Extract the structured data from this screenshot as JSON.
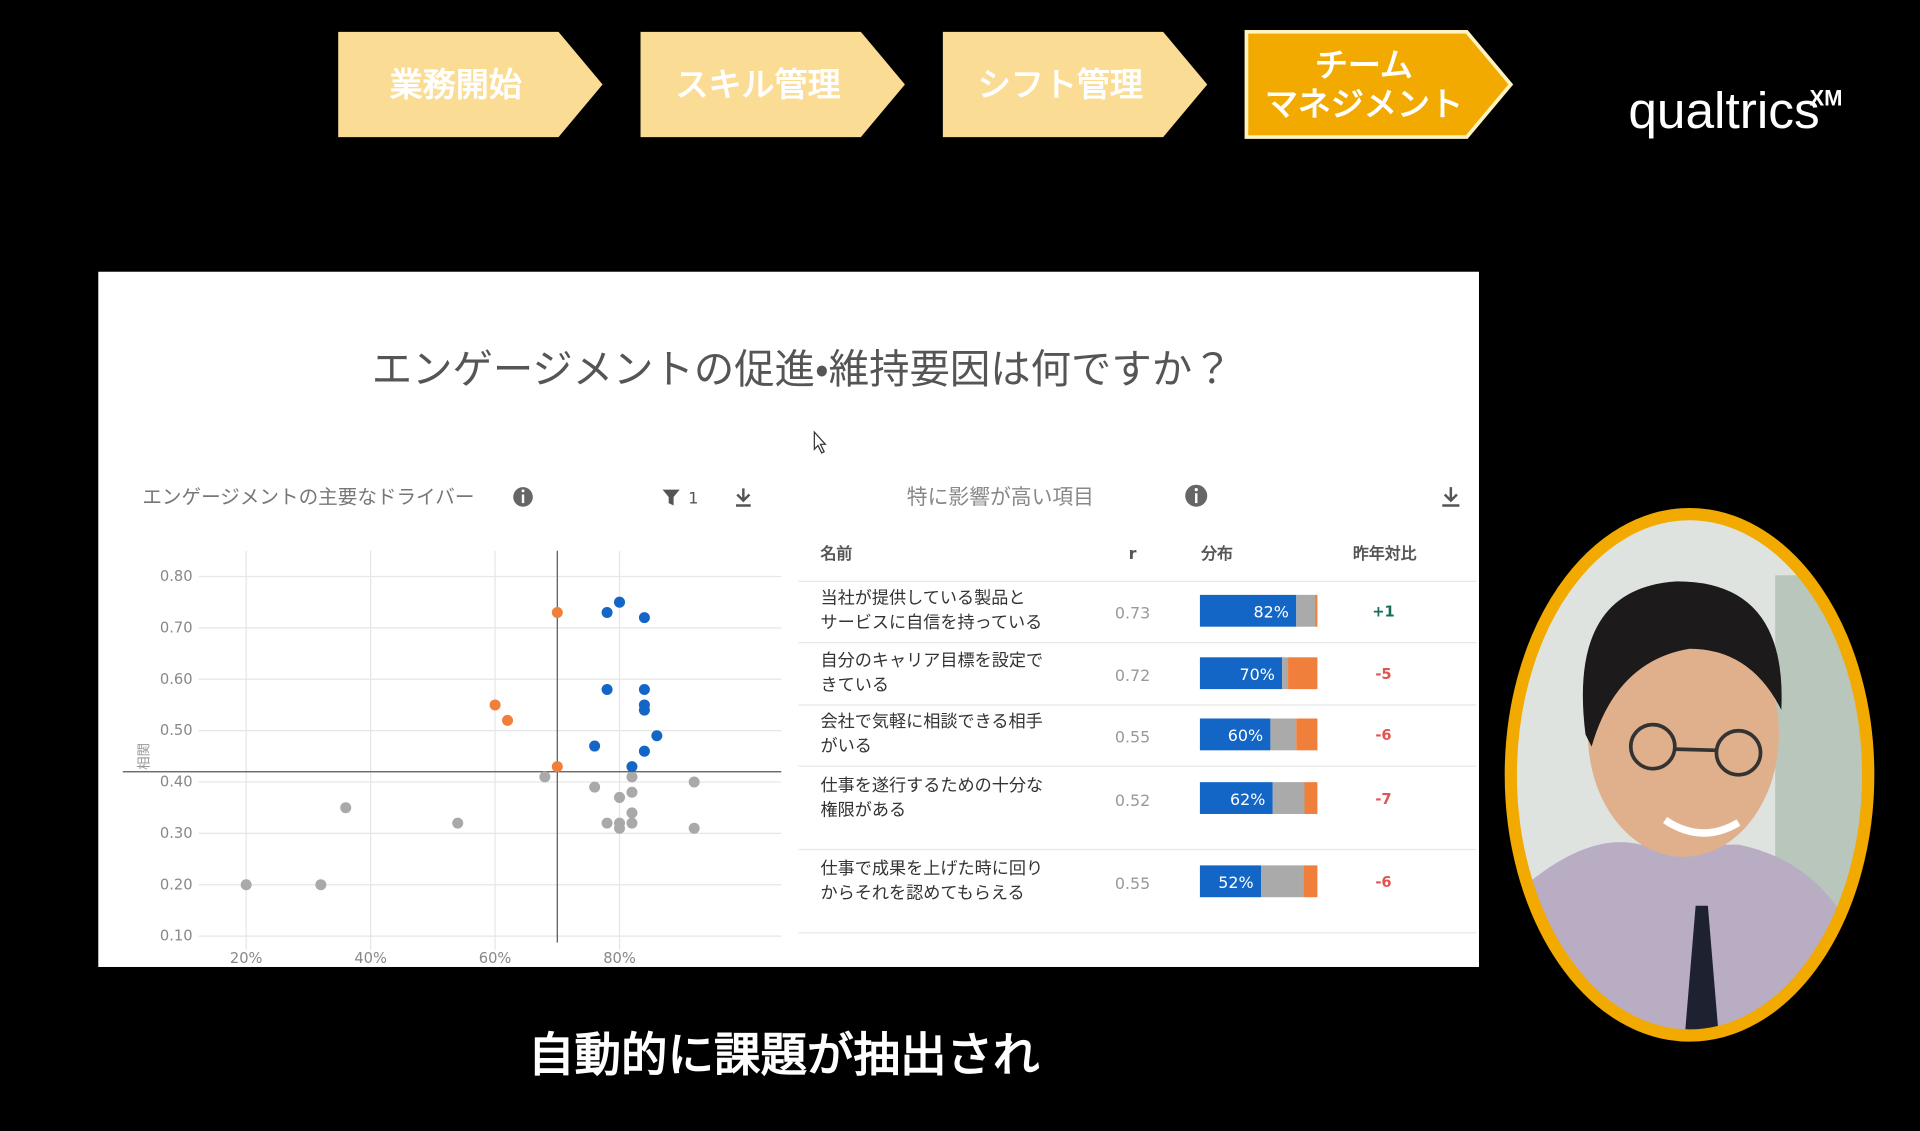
{
  "steps": [
    {
      "label": [
        "業務開始"
      ],
      "color": "#fbdc94"
    },
    {
      "label": [
        "スキル管理"
      ],
      "color": "#fbdc94"
    },
    {
      "label": [
        "シフト管理"
      ],
      "color": "#fbdc94"
    },
    {
      "label": [
        "チーム",
        "マネジメント"
      ],
      "color": "#f2a900"
    }
  ],
  "logo": {
    "text": "qualtrics",
    "mark": "XM"
  },
  "dashboard": {
    "title": "エンゲージメントの促進・維持要因は何ですか？",
    "left_header": "エンゲージメントの主要なドライバー",
    "filter_count": "1",
    "right_header": "特に影響が高い項目"
  },
  "chart_data": {
    "type": "scatter",
    "y_label": "相関",
    "xlim": [
      10,
      106
    ],
    "ylim": [
      0.04,
      0.85
    ],
    "xticks": [
      {
        "value": 20,
        "label": "20%"
      },
      {
        "value": 40,
        "label": "40%"
      },
      {
        "value": 60,
        "label": "60%"
      },
      {
        "value": 80,
        "label": "80%"
      }
    ],
    "yticks": [
      {
        "value": 0.1,
        "label": "0.10"
      },
      {
        "value": 0.2,
        "label": "0.20"
      },
      {
        "value": 0.3,
        "label": "0.30"
      },
      {
        "value": 0.4,
        "label": "0.40"
      },
      {
        "value": 0.5,
        "label": "0.50"
      },
      {
        "value": 0.6,
        "label": "0.60"
      },
      {
        "value": 0.7,
        "label": "0.70"
      },
      {
        "value": 0.8,
        "label": "0.80"
      }
    ],
    "grid": true,
    "reference_x": 70,
    "reference_y": 0.42,
    "series": [
      {
        "color": "#a9a9a9",
        "x": [
          20,
          32,
          36,
          54,
          68,
          76,
          78,
          80,
          80,
          80,
          82,
          82,
          82,
          82,
          92,
          92
        ],
        "values": [
          0.2,
          0.2,
          0.35,
          0.32,
          0.41,
          0.39,
          0.32,
          0.37,
          0.32,
          0.31,
          0.41,
          0.38,
          0.34,
          0.32,
          0.4,
          0.31
        ]
      },
      {
        "color": "#f07f3c",
        "x": [
          70,
          60,
          62,
          70
        ],
        "values": [
          0.73,
          0.55,
          0.52,
          0.43
        ]
      },
      {
        "color": "#1466c6",
        "x": [
          78,
          80,
          84,
          78,
          84,
          84,
          84,
          86,
          76,
          84,
          82
        ],
        "values": [
          0.73,
          0.75,
          0.72,
          0.58,
          0.58,
          0.55,
          0.54,
          0.49,
          0.47,
          0.46,
          0.43
        ]
      }
    ]
  },
  "table": {
    "columns": [
      "名前",
      "r",
      "分布",
      "昨年対比"
    ],
    "segment_colors": [
      "#1466c6",
      "#aaaaaa",
      "#f07f3c"
    ],
    "rows": [
      {
        "name": [
          "当社が提供している製品と",
          "サービスに自信を持っている"
        ],
        "r": "0.73",
        "distribution": {
          "values": [
            82,
            16,
            2
          ],
          "value_label": "82%"
        },
        "change": "+1",
        "change_color": "#1a6b5a"
      },
      {
        "name": [
          "自分のキャリア目標を設定で",
          "きている"
        ],
        "r": "0.72",
        "distribution": {
          "values": [
            70,
            5,
            25
          ],
          "value_label": "70%"
        },
        "change": "-5",
        "change_color": "#e0554f"
      },
      {
        "name": [
          "会社で気軽に相談できる相手",
          "がいる"
        ],
        "r": "0.55",
        "distribution": {
          "values": [
            60,
            22,
            18
          ],
          "value_label": "60%"
        },
        "change": "-6",
        "change_color": "#e0554f"
      },
      {
        "name": [
          "仕事を遂行するための十分な",
          "権限がある"
        ],
        "r": "0.52",
        "distribution": {
          "values": [
            62,
            27,
            11
          ],
          "value_label": "62%"
        },
        "change": "-7",
        "change_color": "#e0554f"
      },
      {
        "name": [
          "仕事で成果を上げた時に回り",
          "からそれを認めてもらえる"
        ],
        "r": "0.55",
        "distribution": {
          "values": [
            52,
            36,
            12
          ],
          "value_label": "52%"
        },
        "change": "-6",
        "change_color": "#e0554f"
      }
    ]
  },
  "caption": "自動的に課題が抽出され"
}
